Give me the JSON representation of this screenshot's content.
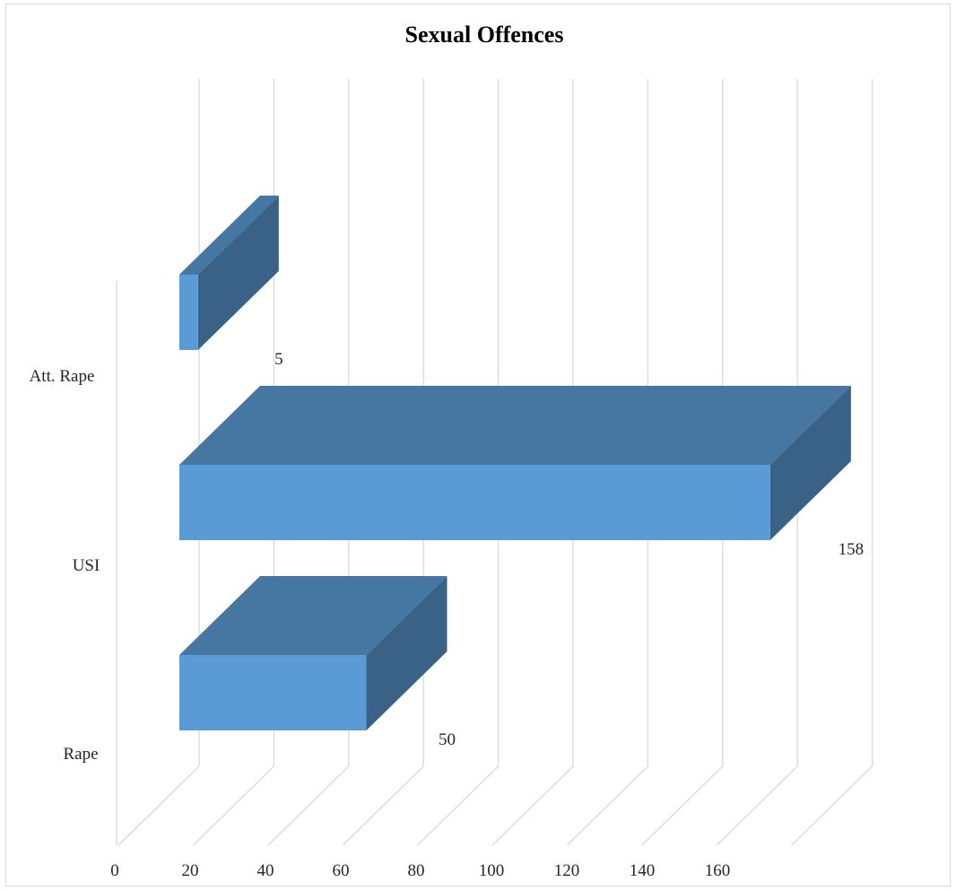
{
  "chart_data": {
    "type": "bar",
    "orientation": "horizontal",
    "style": "3d",
    "title": "Sexual Offences",
    "categories": [
      "Att. Rape",
      "USI",
      "Rape"
    ],
    "values": [
      5,
      158,
      50
    ],
    "data_labels": [
      "5",
      "158",
      "50"
    ],
    "x_ticks": [
      "0",
      "20",
      "40",
      "60",
      "80",
      "100",
      "120",
      "140",
      "160"
    ],
    "xlim": [
      0,
      180
    ],
    "grid": true,
    "legend": "none",
    "colors": {
      "bar_front": "#5b9bd5",
      "bar_top": "#4677a2",
      "bar_side": "#3a6286",
      "gridline": "#d9d9d9",
      "text": "#262626"
    }
  }
}
